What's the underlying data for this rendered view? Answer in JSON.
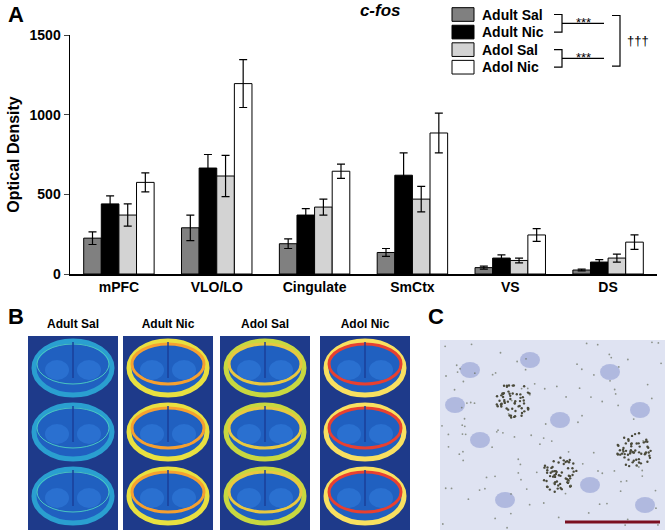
{
  "chart_data": {
    "type": "bar",
    "title": "c-fos",
    "panel_label": "A",
    "y_label": "Optical Density",
    "categories": [
      "mPFC",
      "VLO/LO",
      "Cingulate",
      "SmCtx",
      "VS",
      "DS"
    ],
    "series": [
      {
        "name": "Adult Sal",
        "color": "#808080",
        "values": [
          225,
          290,
          190,
          135,
          40,
          25
        ],
        "errors": [
          40,
          80,
          30,
          25,
          10,
          5
        ]
      },
      {
        "name": "Adult Nic",
        "color": "#000000",
        "values": [
          440,
          665,
          370,
          620,
          100,
          75
        ],
        "errors": [
          50,
          85,
          40,
          140,
          20,
          15
        ]
      },
      {
        "name": "Adol Sal",
        "color": "#d3d3d3",
        "values": [
          370,
          615,
          420,
          470,
          85,
          100
        ],
        "errors": [
          70,
          130,
          50,
          80,
          15,
          25
        ]
      },
      {
        "name": "Adol Nic",
        "color": "#ffffff",
        "values": [
          575,
          1195,
          645,
          885,
          245,
          200
        ],
        "errors": [
          60,
          150,
          45,
          125,
          40,
          45
        ]
      }
    ],
    "annotations": [
      "***",
      "***",
      "†††"
    ],
    "ylim": [
      0,
      1500
    ],
    "yticks": [
      0,
      500,
      1000,
      1500
    ],
    "grid": false
  },
  "panel_b": {
    "label": "B",
    "columns": [
      "Adult Sal",
      "Adult Nic",
      "Adol Sal",
      "Adol Nic"
    ]
  },
  "panel_c": {
    "label": "C"
  }
}
